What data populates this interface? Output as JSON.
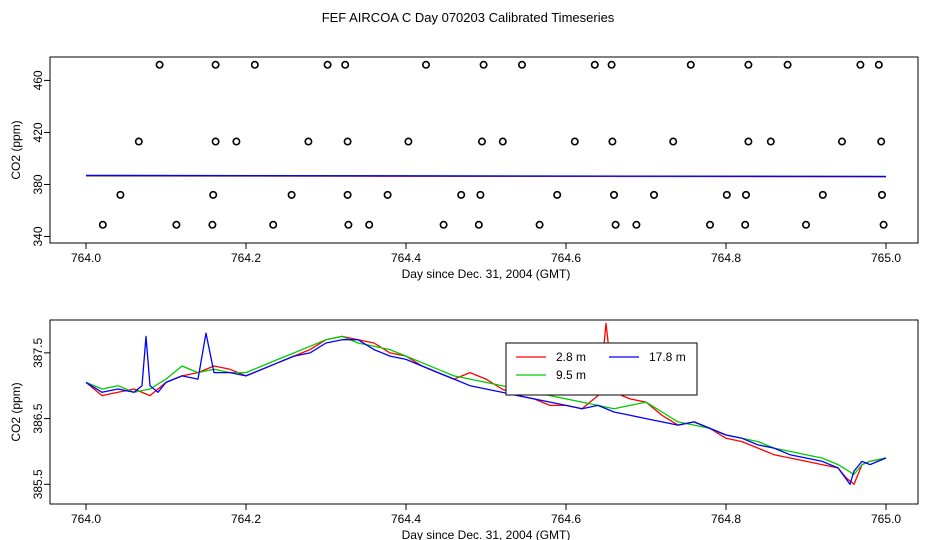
{
  "title": "FEF AIRCOA C  Day 070203  Calibrated Timeseries",
  "colors": {
    "red": "#ff0000",
    "green": "#00cc00",
    "blue": "#0000ff",
    "axis": "#000000"
  },
  "chart_data": [
    {
      "type": "scatter",
      "name": "top-panel",
      "xlabel": "Day since Dec. 31, 2004 (GMT)",
      "ylabel": "CO2 (ppm)",
      "xlim": [
        764.0,
        765.0
      ],
      "ylim": [
        335,
        478
      ],
      "xticks": [
        "764.0",
        "764.2",
        "764.4",
        "764.6",
        "764.8",
        "765.0"
      ],
      "yticks": [
        "340",
        "380",
        "420",
        "460"
      ],
      "points": [
        [
          764.092,
          472
        ],
        [
          764.162,
          472
        ],
        [
          764.211,
          472
        ],
        [
          764.302,
          472
        ],
        [
          764.324,
          472
        ],
        [
          764.425,
          472
        ],
        [
          764.497,
          472
        ],
        [
          764.545,
          472
        ],
        [
          764.636,
          472
        ],
        [
          764.657,
          472
        ],
        [
          764.756,
          472
        ],
        [
          764.828,
          472
        ],
        [
          764.877,
          472
        ],
        [
          764.968,
          472
        ],
        [
          764.991,
          472
        ],
        [
          764.066,
          413
        ],
        [
          764.162,
          413
        ],
        [
          764.188,
          413
        ],
        [
          764.278,
          413
        ],
        [
          764.327,
          413
        ],
        [
          764.403,
          413
        ],
        [
          764.495,
          413
        ],
        [
          764.521,
          413
        ],
        [
          764.611,
          413
        ],
        [
          764.658,
          413
        ],
        [
          764.734,
          413
        ],
        [
          764.828,
          413
        ],
        [
          764.856,
          413
        ],
        [
          764.945,
          413
        ],
        [
          764.994,
          413
        ],
        [
          764.043,
          372
        ],
        [
          764.159,
          372
        ],
        [
          764.257,
          372
        ],
        [
          764.327,
          372
        ],
        [
          764.377,
          372
        ],
        [
          764.469,
          372
        ],
        [
          764.493,
          372
        ],
        [
          764.589,
          372
        ],
        [
          764.66,
          372
        ],
        [
          764.71,
          372
        ],
        [
          764.801,
          372
        ],
        [
          764.825,
          372
        ],
        [
          764.921,
          372
        ],
        [
          764.995,
          372
        ],
        [
          764.021,
          349
        ],
        [
          764.113,
          349
        ],
        [
          764.158,
          349
        ],
        [
          764.234,
          349
        ],
        [
          764.328,
          349
        ],
        [
          764.354,
          349
        ],
        [
          764.447,
          349
        ],
        [
          764.491,
          349
        ],
        [
          764.567,
          349
        ],
        [
          764.662,
          349
        ],
        [
          764.688,
          349
        ],
        [
          764.78,
          349
        ],
        [
          764.824,
          349
        ],
        [
          764.9,
          349
        ],
        [
          764.997,
          349
        ]
      ],
      "series": [
        {
          "name": "2.8 m",
          "color": "#ff0000",
          "x": [
            764.0,
            765.0
          ],
          "y": [
            386.5,
            386.0
          ]
        },
        {
          "name": "9.5 m",
          "color": "#00cc00",
          "x": [
            764.0,
            765.0
          ],
          "y": [
            386.8,
            386.2
          ]
        },
        {
          "name": "17.8 m",
          "color": "#0000ff",
          "x": [
            764.0,
            765.0
          ],
          "y": [
            387.0,
            386.1
          ]
        }
      ]
    },
    {
      "type": "line",
      "name": "bottom-panel",
      "xlabel": "Day since Dec. 31, 2004 (GMT)",
      "ylabel": "CO2 (ppm)",
      "xlim": [
        764.0,
        765.0
      ],
      "ylim": [
        385.2,
        388.0
      ],
      "xticks": [
        "764.0",
        "764.2",
        "764.4",
        "764.6",
        "764.8",
        "765.0"
      ],
      "yticks": [
        "385.5",
        "386.5",
        "387.5"
      ],
      "legend": {
        "position": "top-center",
        "entries": [
          "2.8 m",
          "9.5 m",
          "17.8 m"
        ]
      },
      "series": [
        {
          "name": "2.8 m",
          "color": "#ff0000",
          "x": [
            764.0,
            764.02,
            764.04,
            764.06,
            764.08,
            764.1,
            764.12,
            764.14,
            764.16,
            764.18,
            764.2,
            764.22,
            764.24,
            764.26,
            764.28,
            764.3,
            764.32,
            764.34,
            764.36,
            764.38,
            764.4,
            764.42,
            764.44,
            764.46,
            764.48,
            764.5,
            764.52,
            764.54,
            764.56,
            764.58,
            764.6,
            764.62,
            764.63,
            764.64,
            764.645,
            764.65,
            764.655,
            764.66,
            764.67,
            764.68,
            764.7,
            764.72,
            764.74,
            764.76,
            764.78,
            764.8,
            764.82,
            764.84,
            764.86,
            764.88,
            764.9,
            764.92,
            764.94,
            764.95,
            764.96,
            764.97,
            764.98,
            765.0
          ],
          "y": [
            387.05,
            386.85,
            386.9,
            386.95,
            386.85,
            387.05,
            387.15,
            387.2,
            387.3,
            387.25,
            387.15,
            387.25,
            387.35,
            387.45,
            387.55,
            387.7,
            387.75,
            387.7,
            387.65,
            387.5,
            387.45,
            387.3,
            387.2,
            387.1,
            387.2,
            387.1,
            386.95,
            386.85,
            386.8,
            386.7,
            386.7,
            386.65,
            386.75,
            386.85,
            387.3,
            387.95,
            387.4,
            386.95,
            386.85,
            386.8,
            386.75,
            386.55,
            386.4,
            386.45,
            386.35,
            386.2,
            386.15,
            386.05,
            385.95,
            385.9,
            385.85,
            385.8,
            385.75,
            385.6,
            385.5,
            385.8,
            385.85,
            385.9
          ]
        },
        {
          "name": "9.5 m",
          "color": "#00cc00",
          "x": [
            764.0,
            764.02,
            764.04,
            764.06,
            764.08,
            764.1,
            764.12,
            764.14,
            764.16,
            764.18,
            764.2,
            764.22,
            764.24,
            764.26,
            764.28,
            764.3,
            764.32,
            764.34,
            764.36,
            764.38,
            764.4,
            764.42,
            764.44,
            764.46,
            764.48,
            764.5,
            764.52,
            764.54,
            764.56,
            764.58,
            764.6,
            764.62,
            764.64,
            764.66,
            764.68,
            764.7,
            764.72,
            764.74,
            764.76,
            764.78,
            764.8,
            764.82,
            764.84,
            764.86,
            764.88,
            764.9,
            764.92,
            764.94,
            764.96,
            764.97,
            764.98,
            765.0
          ],
          "y": [
            387.05,
            386.95,
            387.0,
            386.9,
            386.95,
            387.1,
            387.3,
            387.2,
            387.25,
            387.2,
            387.2,
            387.3,
            387.4,
            387.5,
            387.6,
            387.7,
            387.75,
            387.65,
            387.6,
            387.55,
            387.45,
            387.35,
            387.25,
            387.15,
            387.1,
            387.05,
            387.0,
            386.95,
            386.9,
            386.85,
            386.8,
            386.75,
            386.7,
            386.65,
            386.7,
            386.75,
            386.6,
            386.45,
            386.4,
            386.35,
            386.25,
            386.2,
            386.15,
            386.05,
            386.0,
            385.95,
            385.9,
            385.8,
            385.65,
            385.8,
            385.85,
            385.9
          ]
        },
        {
          "name": "17.8 m",
          "color": "#0000ff",
          "x": [
            764.0,
            764.02,
            764.04,
            764.06,
            764.07,
            764.075,
            764.08,
            764.09,
            764.1,
            764.12,
            764.14,
            764.15,
            764.16,
            764.18,
            764.2,
            764.22,
            764.24,
            764.26,
            764.28,
            764.3,
            764.32,
            764.34,
            764.36,
            764.38,
            764.4,
            764.42,
            764.44,
            764.46,
            764.48,
            764.5,
            764.52,
            764.54,
            764.56,
            764.58,
            764.6,
            764.62,
            764.64,
            764.66,
            764.68,
            764.7,
            764.72,
            764.74,
            764.76,
            764.78,
            764.8,
            764.82,
            764.84,
            764.86,
            764.88,
            764.9,
            764.92,
            764.94,
            764.955,
            764.96,
            764.97,
            764.98,
            765.0
          ],
          "y": [
            387.05,
            386.9,
            386.95,
            386.9,
            387.0,
            387.75,
            387.0,
            386.9,
            387.05,
            387.15,
            387.1,
            387.8,
            387.2,
            387.2,
            387.15,
            387.25,
            387.35,
            387.45,
            387.5,
            387.65,
            387.7,
            387.7,
            387.55,
            387.45,
            387.4,
            387.3,
            387.2,
            387.1,
            387.0,
            386.95,
            386.9,
            386.85,
            386.8,
            386.75,
            386.7,
            386.65,
            386.7,
            386.6,
            386.55,
            386.5,
            386.45,
            386.4,
            386.45,
            386.35,
            386.25,
            386.2,
            386.1,
            386.05,
            385.95,
            385.9,
            385.85,
            385.75,
            385.5,
            385.7,
            385.85,
            385.8,
            385.9
          ]
        }
      ]
    }
  ]
}
